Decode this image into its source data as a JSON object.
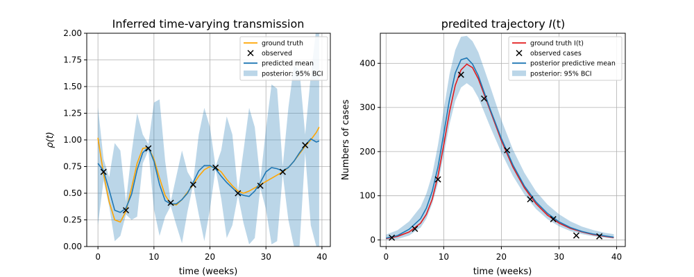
{
  "chart_data": [
    {
      "type": "line",
      "title": "Inferred time-varying transmission",
      "xlabel": "time (weeks)",
      "ylabel": "ρ(t)",
      "xlim": [
        -2,
        41.5
      ],
      "ylim": [
        0,
        2.0
      ],
      "xticks": [
        0,
        10,
        20,
        30,
        40
      ],
      "yticks": [
        0.0,
        0.25,
        0.5,
        0.75,
        1.0,
        1.25,
        1.5,
        1.75,
        2.0
      ],
      "ytick_labels": [
        "0.00",
        "0.25",
        "0.50",
        "0.75",
        "1.00",
        "1.25",
        "1.50",
        "1.75",
        "2.00"
      ],
      "grid": true,
      "legend_position": "top-right",
      "legend": [
        {
          "label": "ground truth",
          "kind": "line",
          "color": "#FFA500"
        },
        {
          "label": "observed",
          "kind": "marker",
          "color": "#000000"
        },
        {
          "label": "predicted mean",
          "kind": "line",
          "color": "#1f77b4"
        },
        {
          "label": "posterior: 95% BCI",
          "kind": "band",
          "color": "#1f77b4"
        }
      ],
      "ground_truth": {
        "x": [
          0,
          1,
          2,
          3,
          4,
          5,
          6,
          7,
          8,
          9,
          10,
          11,
          12,
          13,
          14,
          15,
          16,
          17,
          18,
          19,
          20,
          21,
          22,
          23,
          24,
          25,
          26,
          27,
          28,
          29,
          30,
          31,
          32,
          33,
          34,
          35,
          36,
          37,
          38,
          39,
          39.5
        ],
        "y": [
          1.02,
          0.68,
          0.42,
          0.25,
          0.23,
          0.33,
          0.55,
          0.78,
          0.92,
          0.93,
          0.82,
          0.64,
          0.48,
          0.4,
          0.39,
          0.44,
          0.51,
          0.58,
          0.66,
          0.72,
          0.75,
          0.74,
          0.7,
          0.63,
          0.57,
          0.52,
          0.5,
          0.52,
          0.55,
          0.58,
          0.61,
          0.64,
          0.67,
          0.7,
          0.74,
          0.8,
          0.87,
          0.94,
          1.0,
          1.07,
          1.12
        ]
      },
      "predicted_mean": {
        "x": [
          0,
          1,
          2,
          3,
          4,
          5,
          6,
          7,
          8,
          9,
          10,
          11,
          12,
          13,
          14,
          15,
          16,
          17,
          18,
          19,
          20,
          21,
          22,
          23,
          24,
          25,
          26,
          27,
          28,
          29,
          30,
          31,
          32,
          33,
          34,
          35,
          36,
          37,
          38,
          39,
          39.5
        ],
        "y": [
          0.78,
          0.71,
          0.53,
          0.34,
          0.32,
          0.36,
          0.49,
          0.72,
          0.88,
          0.93,
          0.8,
          0.58,
          0.43,
          0.4,
          0.4,
          0.44,
          0.5,
          0.6,
          0.71,
          0.76,
          0.76,
          0.73,
          0.66,
          0.6,
          0.55,
          0.5,
          0.48,
          0.47,
          0.52,
          0.6,
          0.7,
          0.74,
          0.73,
          0.71,
          0.74,
          0.8,
          0.88,
          0.95,
          1.01,
          0.98,
          0.99
        ]
      },
      "band": {
        "x": [
          0,
          1,
          2,
          3,
          4,
          5,
          6,
          7,
          8,
          9,
          10,
          11,
          12,
          13,
          14,
          15,
          16,
          17,
          18,
          19,
          20,
          21,
          22,
          23,
          24,
          25,
          26,
          27,
          28,
          29,
          30,
          31,
          32,
          33,
          34,
          35,
          36,
          37,
          38,
          39,
          39.5
        ],
        "lower": [
          0.2,
          0.62,
          0.38,
          0.05,
          0.1,
          0.3,
          0.25,
          0.28,
          0.78,
          0.9,
          0.35,
          0.1,
          0.28,
          0.38,
          0.2,
          0.03,
          0.33,
          0.58,
          0.3,
          0.05,
          0.35,
          0.73,
          0.45,
          0.08,
          0.2,
          0.48,
          0.22,
          0.02,
          0.08,
          0.55,
          0.35,
          0.02,
          0.05,
          0.68,
          0.25,
          0.0,
          0.0,
          0.88,
          0.2,
          0.0,
          0.0
        ],
        "upper": [
          1.31,
          0.82,
          0.65,
          0.97,
          0.9,
          0.42,
          0.88,
          1.25,
          1.05,
          0.96,
          1.35,
          1.38,
          0.8,
          0.42,
          0.66,
          0.9,
          0.7,
          0.61,
          1.05,
          1.3,
          1.12,
          0.75,
          0.9,
          1.22,
          1.05,
          0.52,
          0.9,
          1.3,
          1.12,
          0.62,
          1.1,
          1.52,
          1.48,
          0.75,
          1.3,
          1.7,
          1.65,
          1.05,
          1.6,
          2.05,
          2.05
        ]
      },
      "observed": {
        "x": [
          1,
          5,
          9,
          13,
          17,
          21,
          25,
          29,
          33,
          37
        ],
        "y": [
          0.7,
          0.34,
          0.92,
          0.41,
          0.58,
          0.74,
          0.5,
          0.57,
          0.7,
          0.95
        ]
      }
    },
    {
      "type": "line",
      "title": "predited trajectory I(t)",
      "title_prefix": "predited trajectory ",
      "title_italic": "I",
      "title_suffix": "(t)",
      "xlabel": "time (weeks)",
      "ylabel": "Numbers of cases",
      "xlim": [
        -1,
        41.5
      ],
      "ylim": [
        -15,
        468
      ],
      "xticks": [
        0,
        10,
        20,
        30,
        40
      ],
      "yticks": [
        0,
        100,
        200,
        300,
        400
      ],
      "grid": true,
      "legend_position": "top-right",
      "legend": [
        {
          "label": "ground truth I(t)",
          "kind": "line",
          "color": "#e31a1c"
        },
        {
          "label": "observed cases",
          "kind": "marker",
          "color": "#000000"
        },
        {
          "label": "posterior predictive mean",
          "kind": "line",
          "color": "#1f77b4"
        },
        {
          "label": "posterior: 95% BCI",
          "kind": "band",
          "color": "#1f77b4"
        }
      ],
      "ground_truth": {
        "x": [
          0,
          2,
          4,
          6,
          7,
          8,
          9,
          10,
          11,
          12,
          13,
          14,
          15,
          16,
          17,
          18,
          20,
          22,
          24,
          26,
          28,
          30,
          32,
          34,
          36,
          38,
          39.5
        ],
        "y": [
          3,
          8,
          18,
          38,
          58,
          92,
          145,
          215,
          290,
          350,
          385,
          398,
          390,
          365,
          330,
          295,
          225,
          165,
          118,
          82,
          56,
          38,
          26,
          18,
          12,
          8,
          5
        ]
      },
      "predicted_mean": {
        "x": [
          0,
          2,
          4,
          6,
          7,
          8,
          9,
          10,
          11,
          12,
          13,
          14,
          15,
          16,
          17,
          18,
          20,
          22,
          24,
          26,
          28,
          30,
          32,
          34,
          36,
          38,
          39.5
        ],
        "y": [
          4,
          10,
          24,
          48,
          72,
          110,
          165,
          240,
          318,
          378,
          408,
          412,
          398,
          372,
          335,
          298,
          230,
          170,
          122,
          86,
          60,
          41,
          28,
          19,
          13,
          9,
          6
        ]
      },
      "band": {
        "x": [
          0,
          2,
          4,
          6,
          7,
          8,
          9,
          10,
          11,
          12,
          13,
          14,
          15,
          16,
          17,
          18,
          20,
          22,
          24,
          26,
          28,
          30,
          32,
          34,
          36,
          38,
          39.5
        ],
        "lower": [
          0,
          2,
          10,
          28,
          48,
          82,
          128,
          192,
          262,
          315,
          345,
          355,
          345,
          322,
          290,
          258,
          198,
          145,
          103,
          70,
          47,
          31,
          20,
          13,
          8,
          5,
          3
        ],
        "upper": [
          12,
          22,
          42,
          75,
          105,
          148,
          215,
          295,
          375,
          430,
          460,
          462,
          450,
          425,
          388,
          350,
          272,
          205,
          152,
          110,
          80,
          58,
          42,
          30,
          22,
          16,
          13
        ]
      },
      "observed": {
        "x": [
          1,
          5,
          9,
          13,
          17,
          21,
          25,
          29,
          33,
          37
        ],
        "y": [
          5,
          25,
          137,
          374,
          320,
          203,
          92,
          47,
          10,
          8
        ]
      }
    }
  ]
}
